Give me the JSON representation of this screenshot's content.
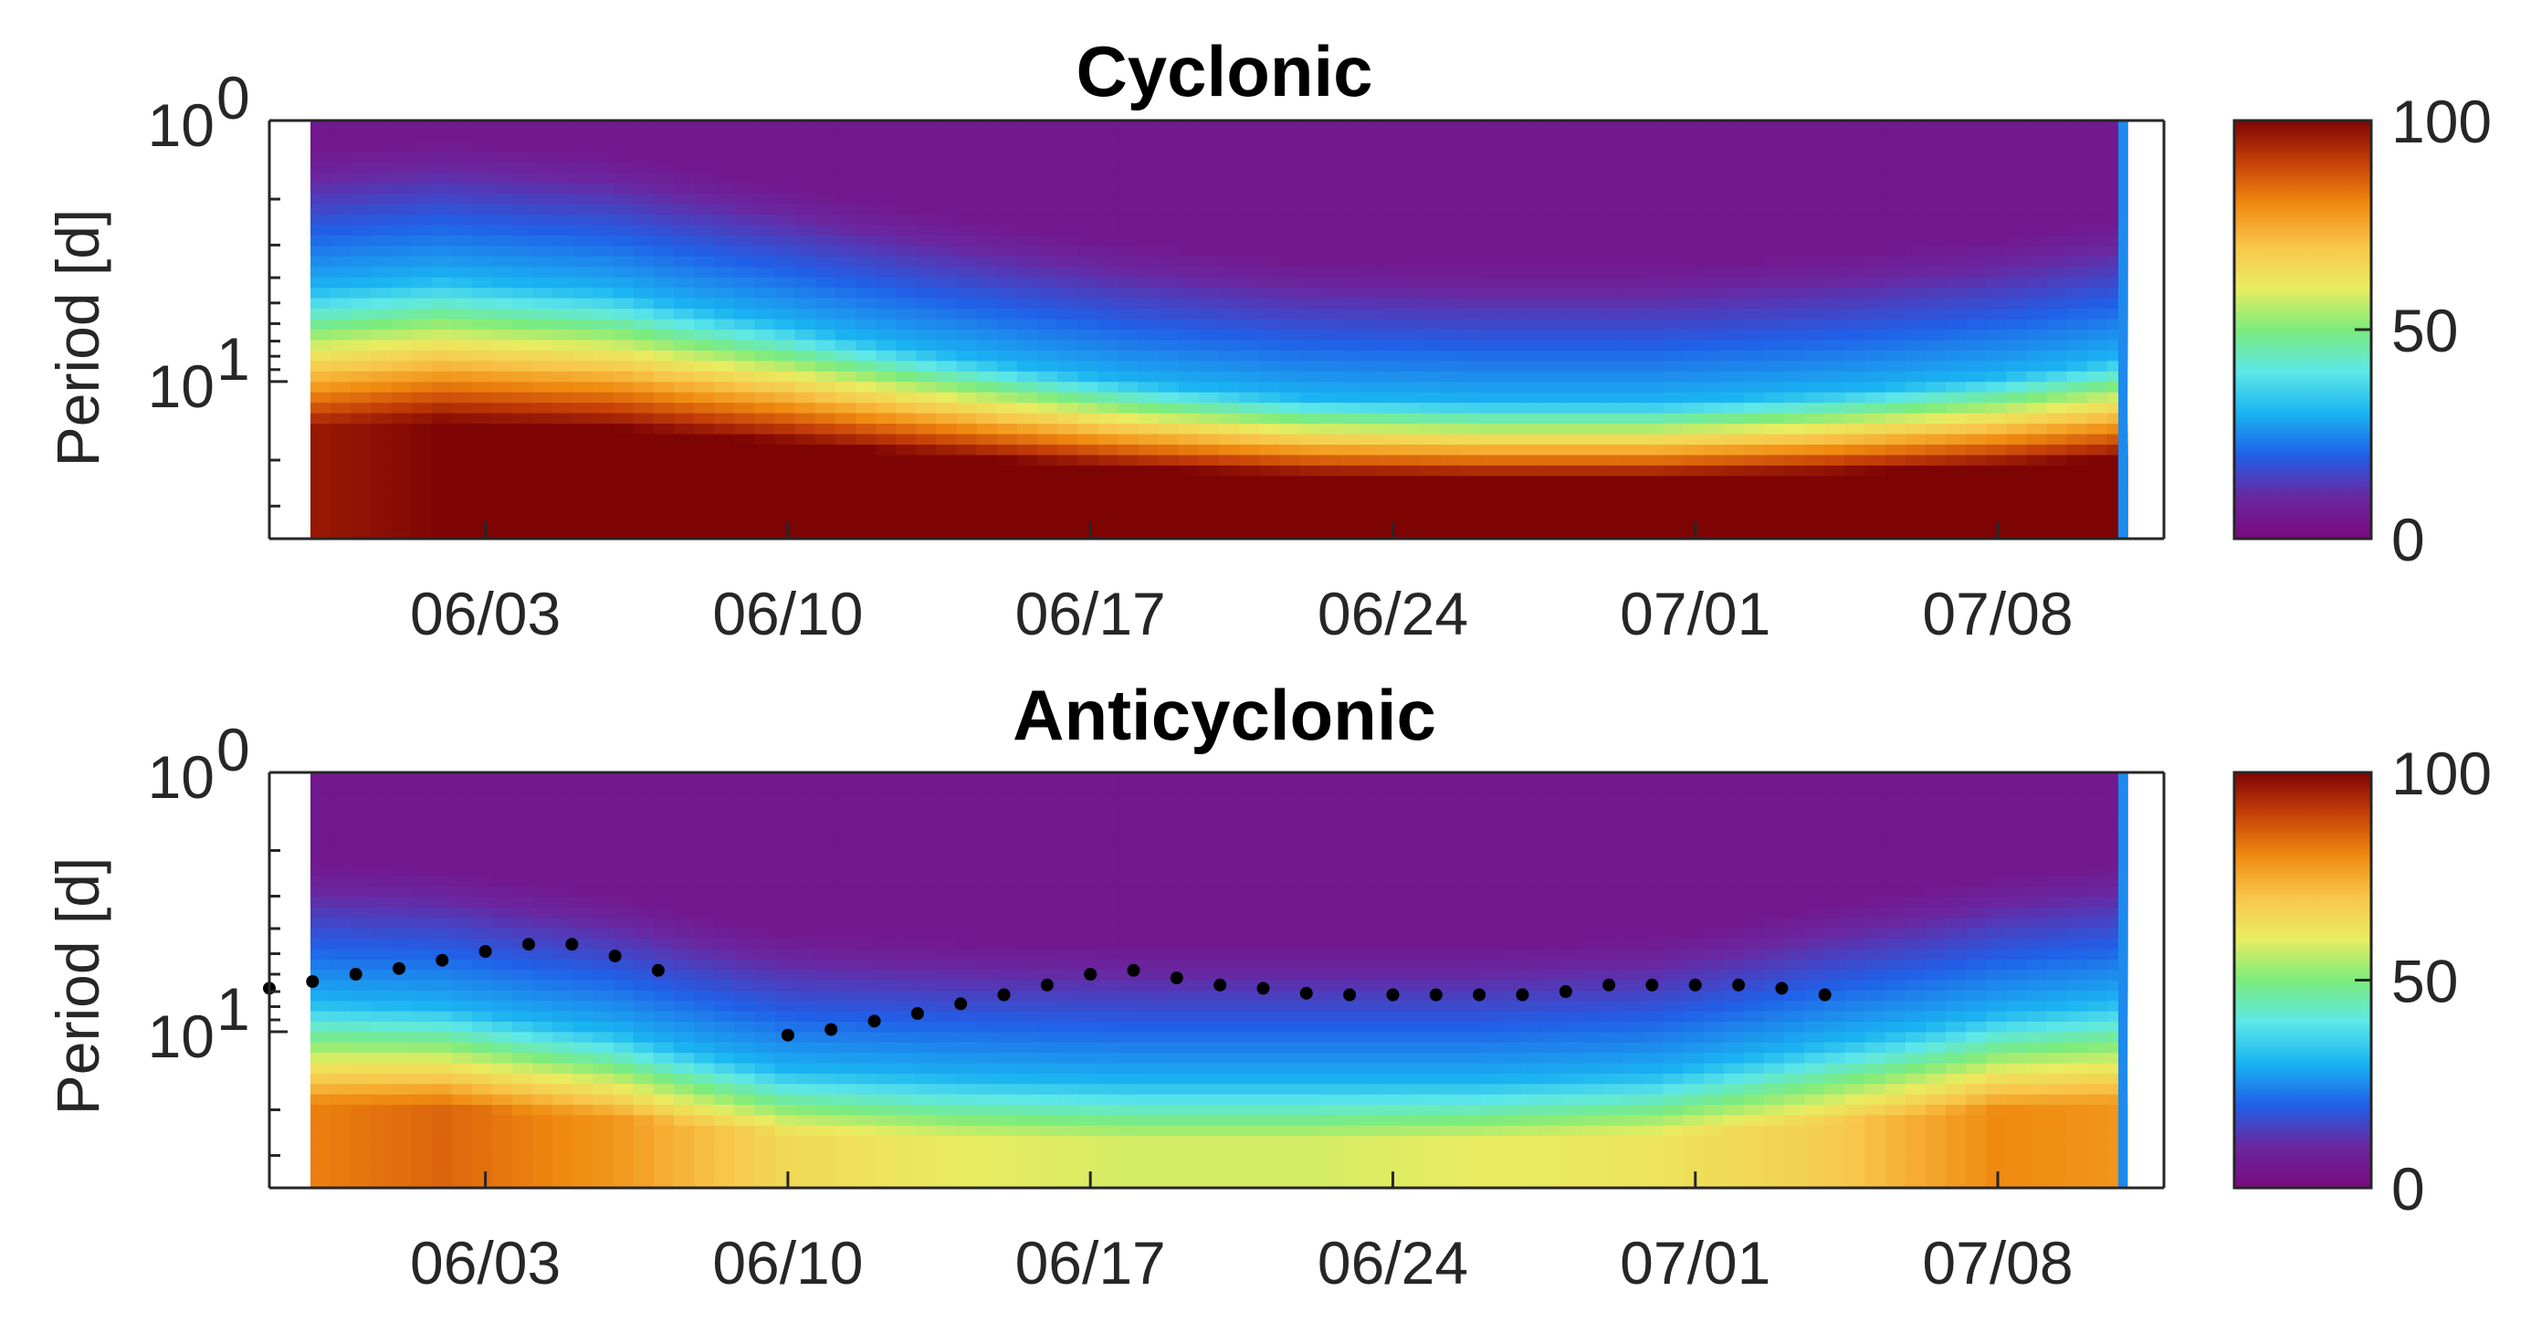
{
  "figure": {
    "colorbar": {
      "ticks": [
        0,
        50,
        100
      ],
      "range": [
        0,
        100
      ],
      "colormap": [
        "#7a0a7e",
        "#6a27a0",
        "#2060e8",
        "#1ab4f2",
        "#5ee8e8",
        "#7cec7c",
        "#eaec60",
        "#f8c64a",
        "#f08a10",
        "#c64008",
        "#7e0404"
      ]
    }
  },
  "chart_data": [
    {
      "type": "heatmap",
      "title": "Cyclonic",
      "ylabel": "Period [d]",
      "xlabel": "",
      "yscale": "log",
      "ylim": [
        1,
        40
      ],
      "y_ticks": [
        {
          "base": "10",
          "exp": "0",
          "value": 1
        },
        {
          "base": "10",
          "exp": "1",
          "value": 10
        }
      ],
      "x_ticks": [
        "06/03",
        "06/10",
        "06/17",
        "06/24",
        "07/01",
        "07/08"
      ],
      "x_tick_dates": [
        "2019-06-03",
        "2019-06-10",
        "2019-06-17",
        "2019-06-24",
        "2019-07-01",
        "2019-07-08"
      ],
      "xlim": [
        "2019-05-29",
        "2019-07-11"
      ],
      "z_range": [
        0,
        100
      ],
      "power_profile": {
        "dates": [
          "2019-05-29",
          "2019-06-02",
          "2019-06-06",
          "2019-06-10",
          "2019-06-14",
          "2019-06-18",
          "2019-06-22",
          "2019-06-26",
          "2019-06-30",
          "2019-07-04",
          "2019-07-08",
          "2019-07-11"
        ],
        "band_edge_period": [
          9,
          8,
          9,
          12,
          16,
          20,
          23,
          24,
          24,
          22,
          19,
          16
        ],
        "peak_value": [
          95,
          100,
          100,
          100,
          100,
          100,
          100,
          100,
          100,
          100,
          100,
          100
        ]
      },
      "significant_ridge": []
    },
    {
      "type": "heatmap",
      "title": "Anticyclonic",
      "ylabel": "Period [d]",
      "xlabel": "",
      "yscale": "log",
      "ylim": [
        1,
        40
      ],
      "y_ticks": [
        {
          "base": "10",
          "exp": "0",
          "value": 1
        },
        {
          "base": "10",
          "exp": "1",
          "value": 10
        }
      ],
      "x_ticks": [
        "06/03",
        "06/10",
        "06/17",
        "06/24",
        "07/01",
        "07/08"
      ],
      "x_tick_dates": [
        "2019-06-03",
        "2019-06-10",
        "2019-06-17",
        "2019-06-24",
        "2019-07-01",
        "2019-07-08"
      ],
      "xlim": [
        "2019-05-29",
        "2019-07-11"
      ],
      "z_range": [
        0,
        100
      ],
      "power_profile": {
        "dates": [
          "2019-05-29",
          "2019-06-02",
          "2019-06-06",
          "2019-06-10",
          "2019-06-14",
          "2019-06-18",
          "2019-06-22",
          "2019-06-26",
          "2019-06-30",
          "2019-07-04",
          "2019-07-08",
          "2019-07-11"
        ],
        "band_edge_period": [
          15,
          16,
          20,
          28,
          30,
          31,
          31,
          31,
          29,
          22,
          17,
          15
        ],
        "peak_value": [
          80,
          85,
          78,
          65,
          60,
          58,
          58,
          60,
          62,
          68,
          80,
          78
        ]
      },
      "significant_ridge": [
        {
          "date": "2019-05-29",
          "period": 6.8
        },
        {
          "date": "2019-05-30",
          "period": 6.4
        },
        {
          "date": "2019-05-31",
          "period": 6.0
        },
        {
          "date": "2019-06-01",
          "period": 5.7
        },
        {
          "date": "2019-06-02",
          "period": 5.3
        },
        {
          "date": "2019-06-03",
          "period": 4.9
        },
        {
          "date": "2019-06-04",
          "period": 4.6
        },
        {
          "date": "2019-06-05",
          "period": 4.6
        },
        {
          "date": "2019-06-06",
          "period": 5.1
        },
        {
          "date": "2019-06-07",
          "period": 5.8
        },
        {
          "date": "2019-06-10",
          "period": 10.3
        },
        {
          "date": "2019-06-11",
          "period": 9.8
        },
        {
          "date": "2019-06-12",
          "period": 9.1
        },
        {
          "date": "2019-06-13",
          "period": 8.5
        },
        {
          "date": "2019-06-14",
          "period": 7.8
        },
        {
          "date": "2019-06-15",
          "period": 7.2
        },
        {
          "date": "2019-06-16",
          "period": 6.6
        },
        {
          "date": "2019-06-17",
          "period": 6.0
        },
        {
          "date": "2019-06-18",
          "period": 5.8
        },
        {
          "date": "2019-06-19",
          "period": 6.2
        },
        {
          "date": "2019-06-20",
          "period": 6.6
        },
        {
          "date": "2019-06-21",
          "period": 6.8
        },
        {
          "date": "2019-06-22",
          "period": 7.1
        },
        {
          "date": "2019-06-23",
          "period": 7.2
        },
        {
          "date": "2019-06-24",
          "period": 7.2
        },
        {
          "date": "2019-06-25",
          "period": 7.2
        },
        {
          "date": "2019-06-26",
          "period": 7.2
        },
        {
          "date": "2019-06-27",
          "period": 7.2
        },
        {
          "date": "2019-06-28",
          "period": 7.0
        },
        {
          "date": "2019-06-29",
          "period": 6.6
        },
        {
          "date": "2019-06-30",
          "period": 6.6
        },
        {
          "date": "2019-07-01",
          "period": 6.6
        },
        {
          "date": "2019-07-02",
          "period": 6.6
        },
        {
          "date": "2019-07-03",
          "period": 6.8
        },
        {
          "date": "2019-07-04",
          "period": 7.2
        }
      ]
    }
  ]
}
